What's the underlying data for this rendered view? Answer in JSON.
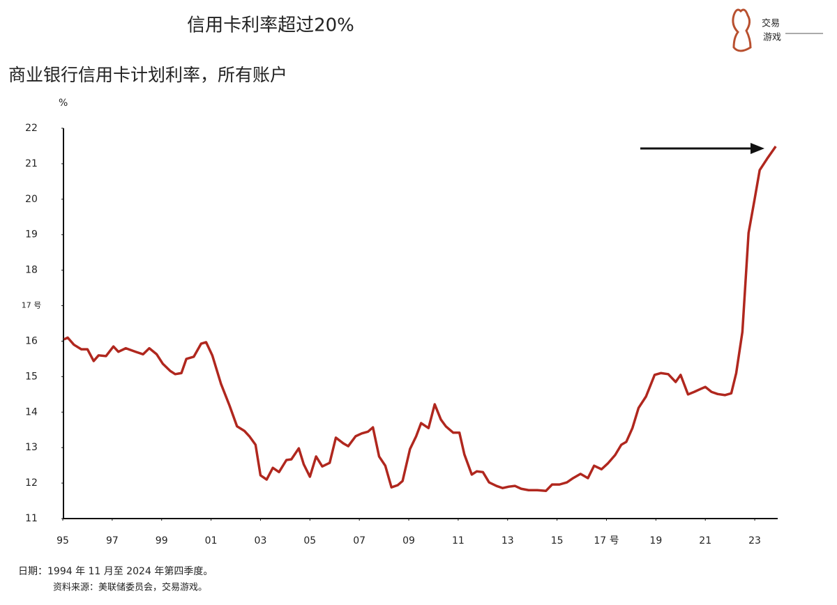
{
  "chart_data": {
    "type": "line",
    "title": "信用卡利率超过20%",
    "subtitle": "商业银行信用卡计划利率，所有账户",
    "y_unit": "%",
    "notes": [
      "日期：1994 年 11 月至 2024 年第四季度。",
      "资料来源：美联储委员会，交易游戏。"
    ],
    "logo": [
      "交易",
      "游戏"
    ],
    "x": [
      1995.05,
      1995.2,
      1995.45,
      1995.75,
      1996.0,
      1996.25,
      1996.45,
      1996.75,
      1997.05,
      1997.25,
      1997.55,
      1997.95,
      1998.25,
      1998.5,
      1998.8,
      1999.05,
      1999.35,
      1999.55,
      1999.8,
      2000.0,
      2000.3,
      2000.6,
      2000.8,
      2001.05,
      2001.4,
      2001.75,
      2002.05,
      2002.35,
      2002.55,
      2002.8,
      2003.0,
      2003.25,
      2003.5,
      2003.75,
      2004.05,
      2004.25,
      2004.55,
      2004.75,
      2005.0,
      2005.25,
      2005.5,
      2005.8,
      2006.05,
      2006.35,
      2006.55,
      2006.85,
      2007.1,
      2007.35,
      2007.55,
      2007.8,
      2008.05,
      2008.3,
      2008.55,
      2008.75,
      2009.05,
      2009.3,
      2009.5,
      2009.8,
      2010.05,
      2010.3,
      2010.5,
      2010.8,
      2011.05,
      2011.25,
      2011.55,
      2011.75,
      2012.0,
      2012.25,
      2012.55,
      2012.8,
      2013.05,
      2013.3,
      2013.55,
      2013.85,
      2014.2,
      2014.55,
      2014.8,
      2015.1,
      2015.4,
      2015.65,
      2015.95,
      2016.25,
      2016.5,
      2016.8,
      2017.05,
      2017.35,
      2017.6,
      2017.8,
      2018.05,
      2018.3,
      2018.6,
      2018.95,
      2019.2,
      2019.5,
      2019.8,
      2020.0,
      2020.3,
      2020.55,
      2020.8,
      2021.0,
      2021.25,
      2021.5,
      2021.8,
      2022.05,
      2022.25,
      2022.5,
      2022.75,
      2023.0,
      2023.2,
      2023.5,
      2023.85
    ],
    "series": [
      {
        "name": "信用卡计划利率",
        "color": "#b0271e",
        "values": [
          16.05,
          16.1,
          15.9,
          15.77,
          15.77,
          15.44,
          15.6,
          15.58,
          15.85,
          15.7,
          15.8,
          15.7,
          15.63,
          15.8,
          15.63,
          15.36,
          15.16,
          15.07,
          15.1,
          15.5,
          15.56,
          15.93,
          15.97,
          15.6,
          14.8,
          14.18,
          13.6,
          13.47,
          13.32,
          13.08,
          12.22,
          12.1,
          12.43,
          12.31,
          12.65,
          12.67,
          12.98,
          12.53,
          12.18,
          12.75,
          12.47,
          12.57,
          13.28,
          13.12,
          13.04,
          13.32,
          13.4,
          13.45,
          13.57,
          12.75,
          12.49,
          11.88,
          11.94,
          12.06,
          12.96,
          13.32,
          13.69,
          13.55,
          14.22,
          13.79,
          13.6,
          13.42,
          13.42,
          12.81,
          12.24,
          12.33,
          12.31,
          12.02,
          11.92,
          11.86,
          11.9,
          11.92,
          11.84,
          11.8,
          11.8,
          11.78,
          11.96,
          11.96,
          12.02,
          12.14,
          12.26,
          12.14,
          12.49,
          12.39,
          12.55,
          12.79,
          13.08,
          13.16,
          13.55,
          14.12,
          14.44,
          15.05,
          15.1,
          15.07,
          14.85,
          15.05,
          14.5,
          14.57,
          14.65,
          14.71,
          14.57,
          14.51,
          14.48,
          14.53,
          15.1,
          16.26,
          19.05,
          20.02,
          20.82,
          21.14,
          21.49
        ]
      }
    ],
    "xlim": [
      1995,
      2024
    ],
    "xticks": [
      {
        "value": 1995,
        "label": "95"
      },
      {
        "value": 1997,
        "label": "97"
      },
      {
        "value": 1999,
        "label": "99"
      },
      {
        "value": 2001,
        "label": "01"
      },
      {
        "value": 2003,
        "label": "03"
      },
      {
        "value": 2005,
        "label": "05"
      },
      {
        "value": 2007,
        "label": "07"
      },
      {
        "value": 2009,
        "label": "09"
      },
      {
        "value": 2011,
        "label": "11"
      },
      {
        "value": 2013,
        "label": "13"
      },
      {
        "value": 2015,
        "label": "15"
      },
      {
        "value": 2017,
        "label": "17 号"
      },
      {
        "value": 2019,
        "label": "19"
      },
      {
        "value": 2021,
        "label": "21"
      },
      {
        "value": 2023,
        "label": "23"
      }
    ],
    "ylim": [
      11,
      22
    ],
    "yticks": [
      11,
      12,
      13,
      14,
      15,
      16,
      {
        "value": 17,
        "label": "17 号"
      },
      18,
      19,
      20,
      21,
      22
    ],
    "grid": false
  }
}
